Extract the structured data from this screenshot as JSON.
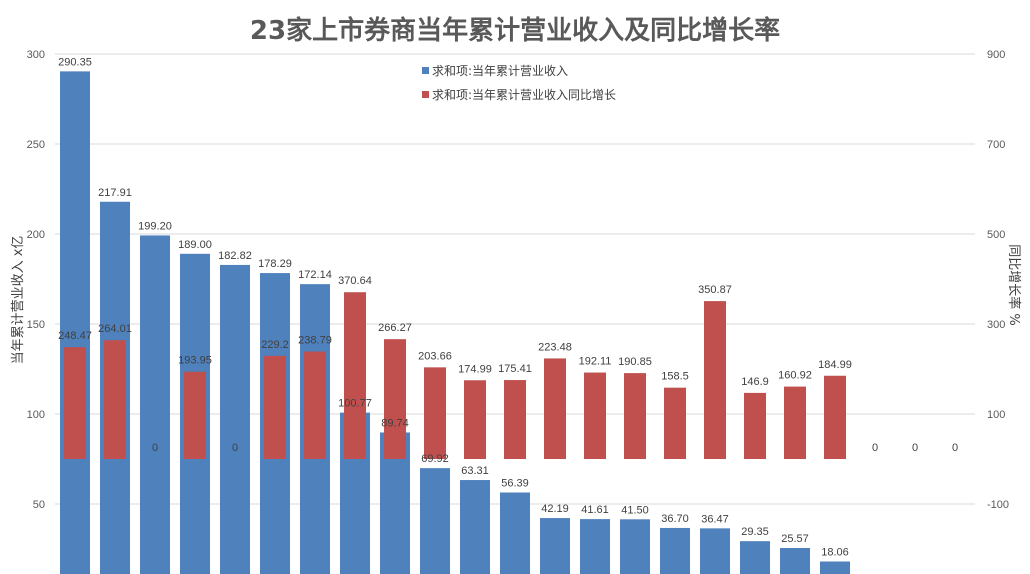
{
  "chart_data": {
    "type": "bar",
    "title": "23家上市券商当年累计营业收入及同比增长率",
    "ylabel": "当年累计营业收入 x亿",
    "y2label": "同比增长率 %",
    "ylim": [
      0,
      300
    ],
    "y2lim": [
      -100,
      900
    ],
    "yticks": [
      50,
      100,
      150,
      200,
      250,
      300
    ],
    "y2ticks": [
      -100,
      100,
      300,
      500,
      700,
      900
    ],
    "grid": true,
    "legend_position": "top-center",
    "series": [
      {
        "name": "求和项:当年累计营业收入",
        "axis": "left",
        "color": "#4f81bd",
        "values": [
          290.35,
          217.91,
          199.2,
          189.0,
          182.82,
          178.29,
          172.14,
          100.77,
          89.74,
          69.92,
          63.31,
          56.39,
          42.19,
          41.61,
          41.5,
          36.7,
          36.47,
          29.35,
          25.57,
          18.06,
          null,
          null,
          null
        ],
        "labels": [
          "290.35",
          "217.91",
          "199.20",
          "189.00",
          "182.82",
          "178.29",
          "172.14",
          "100.77",
          "89.74",
          "69.92",
          "63.31",
          "56.39",
          "42.19",
          "41.61",
          "41.50",
          "36.70",
          "36.47",
          "29.35",
          "25.57",
          "18.06",
          "",
          "",
          ""
        ]
      },
      {
        "name": "求和项:当年累计营业收入同比增长",
        "axis": "right",
        "color": "#c0504d",
        "values": [
          248.47,
          264.01,
          0,
          193.95,
          0,
          229.2,
          238.79,
          370.64,
          266.27,
          203.66,
          174.99,
          175.41,
          223.48,
          192.11,
          190.85,
          158.5,
          350.87,
          146.9,
          160.92,
          184.99,
          0,
          0,
          0
        ],
        "labels": [
          "248.47",
          "264.01",
          "0",
          "193.95",
          "0",
          "229.2",
          "238.79",
          "370.64",
          "266.27",
          "203.66",
          "174.99",
          "175.41",
          "223.48",
          "192.11",
          "190.85",
          "158.5",
          "350.87",
          "146.9",
          "160.92",
          "184.99",
          "0",
          "0",
          "0"
        ]
      }
    ]
  }
}
